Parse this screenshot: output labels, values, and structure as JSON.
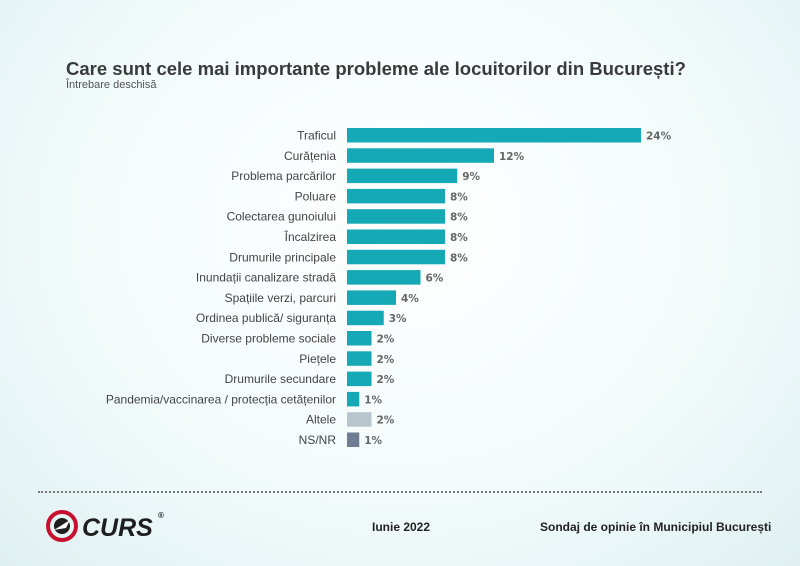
{
  "chart_data": {
    "type": "bar",
    "orientation": "horizontal",
    "title": "Care sunt cele mai importante probleme ale locuitorilor din București?",
    "subtitle": "Întrebare deschisă",
    "categories": [
      "Traficul",
      "Curățenia",
      "Problema parcărilor",
      "Poluare",
      "Colectarea gunoiului",
      "Încalzirea",
      "Drumurile principale",
      "Inundații canalizare stradă",
      "Spațiile verzi, parcuri",
      "Ordinea publică/ siguranța",
      "Diverse probleme sociale",
      "Piețele",
      "Drumurile secundare",
      "Pandemia/vaccinarea / protecția cetățenilor",
      "Altele",
      "NS/NR"
    ],
    "values": [
      24,
      12,
      9,
      8,
      8,
      8,
      8,
      6,
      4,
      3,
      2,
      2,
      2,
      1,
      2,
      1
    ],
    "value_labels": [
      "24%",
      "12%",
      "9%",
      "8%",
      "8%",
      "8%",
      "8%",
      "6%",
      "4%",
      "3%",
      "2%",
      "2%",
      "2%",
      "1%",
      "2%",
      "1%"
    ],
    "colors": [
      "#15a8b5",
      "#15a8b5",
      "#15a8b5",
      "#15a8b5",
      "#15a8b5",
      "#15a8b5",
      "#15a8b5",
      "#15a8b5",
      "#15a8b5",
      "#15a8b5",
      "#15a8b5",
      "#15a8b5",
      "#15a8b5",
      "#15a8b5",
      "#b9c5cc",
      "#6f7d92"
    ],
    "xlim": [
      0,
      24
    ],
    "grid": false,
    "legend": "none"
  },
  "footer": {
    "brand": "CURS",
    "registered_mark": "®",
    "date": "Iunie 2022",
    "source": "Sondaj de opinie în Municipiul București"
  },
  "colors": {
    "logo_red": "#c8102e",
    "logo_dark": "#1e1e1e",
    "label_text": "#444444",
    "value_text": "#666666"
  },
  "icons": [
    "curs-logo-icon"
  ]
}
